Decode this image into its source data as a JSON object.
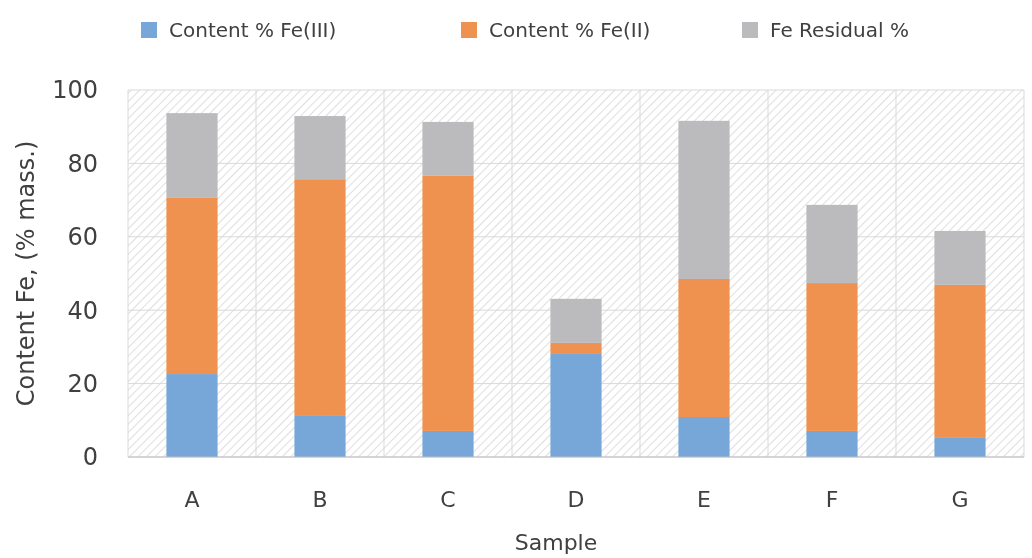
{
  "chart_data": {
    "type": "bar",
    "stacked": true,
    "xlabel": "Sample",
    "ylabel": "Content Fe, (% mass.)",
    "categories": [
      "A",
      "B",
      "C",
      "D",
      "E",
      "F",
      "G"
    ],
    "series": [
      {
        "name": "Content % Fe(III)",
        "color": "#77a7d9",
        "values": [
          22.6,
          11.4,
          7.1,
          28.3,
          10.9,
          7.1,
          5.4
        ]
      },
      {
        "name": "Content % Fe(II)",
        "color": "#f0924f",
        "values": [
          48.0,
          64.3,
          69.5,
          2.8,
          37.6,
          40.3,
          41.5
        ]
      },
      {
        "name": "Fe Residual %",
        "color": "#bbbbbe",
        "values": [
          23.1,
          17.2,
          14.7,
          12.0,
          43.1,
          21.3,
          14.7
        ]
      }
    ],
    "ylim": [
      0,
      100
    ],
    "yticks": [
      0,
      20,
      40,
      60,
      80,
      100
    ],
    "grid": true,
    "legend": "top"
  }
}
